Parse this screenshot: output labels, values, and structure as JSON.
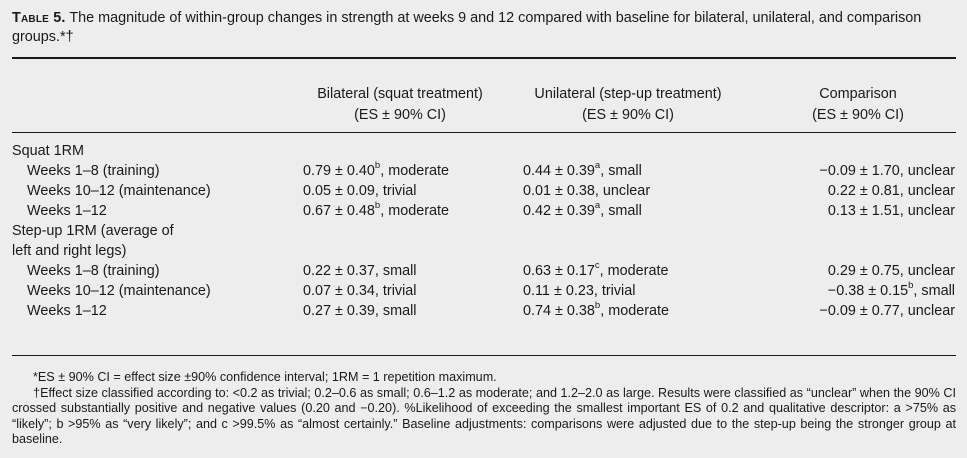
{
  "caption": {
    "lead": "Table 5.",
    "text": " The magnitude of within-group changes in strength at weeks 9 and 12 compared with baseline for bilateral, unilateral, and comparison groups.*†"
  },
  "columns": [
    {
      "line1": "Bilateral (squat treatment)",
      "line2": "(ES ± 90% CI)"
    },
    {
      "line1": "Unilateral (step-up treatment)",
      "line2": "(ES ± 90% CI)"
    },
    {
      "line1": "Comparison",
      "line2": "(ES ± 90% CI)"
    }
  ],
  "rows": [
    {
      "label": "Squat 1RM",
      "section": true
    },
    {
      "label": "Weeks 1–8 (training)",
      "c1": "0.79 ± 0.40",
      "c1_sup": "b",
      "c1_tail": ", moderate",
      "c2": "0.44 ± 0.39",
      "c2_sup": "a",
      "c2_tail": ", small",
      "c3": "−0.09 ± 1.70, unclear"
    },
    {
      "label": "Weeks 10–12 (maintenance)",
      "c1": "0.05 ± 0.09, trivial",
      "c2": "0.01 ± 0.38, unclear",
      "c3": "0.22 ± 0.81, unclear"
    },
    {
      "label": "Weeks 1–12",
      "c1": "0.67 ± 0.48",
      "c1_sup": "b",
      "c1_tail": ", moderate",
      "c2": "0.42 ± 0.39",
      "c2_sup": "a",
      "c2_tail": ", small",
      "c3": "0.13 ± 1.51, unclear"
    },
    {
      "label": "Step-up 1RM (average of",
      "section": true
    },
    {
      "label": "left and right legs)",
      "section": true
    },
    {
      "label": "Weeks 1–8 (training)",
      "c1": "0.22 ± 0.37, small",
      "c2": "0.63 ± 0.17",
      "c2_sup": "c",
      "c2_tail": ", moderate",
      "c3": "0.29 ± 0.75, unclear"
    },
    {
      "label": "Weeks 10–12 (maintenance)",
      "c1": "0.07 ± 0.34, trivial",
      "c2": "0.11 ± 0.23, trivial",
      "c3": "−0.38 ± 0.15",
      "c3_sup": "b",
      "c3_tail": ", small"
    },
    {
      "label": "Weeks 1–12",
      "c1": "0.27 ± 0.39, small",
      "c2": "0.74 ± 0.38",
      "c2_sup": "b",
      "c2_tail": ", moderate",
      "c3": "−0.09 ± 0.77, unclear"
    }
  ],
  "notes": {
    "n1": "*ES ± 90% CI = effect size ±90% confidence interval; 1RM = 1 repetition maximum.",
    "n2": "†Effect size classified according to: <0.2 as trivial; 0.2–0.6 as small; 0.6–1.2 as moderate; and 1.2–2.0 as large. Results were classified as “unclear” when the 90% CI crossed substantially positive and negative values (0.20 and −0.20). %Likelihood of exceeding the smallest important ES of 0.2 and qualitative descriptor: a >75% as “likely”; b >95% as “very likely”; and c >99.5% as “almost certainly.” Baseline adjustments: comparisons were adjusted due to the step-up being the stronger group at baseline."
  }
}
